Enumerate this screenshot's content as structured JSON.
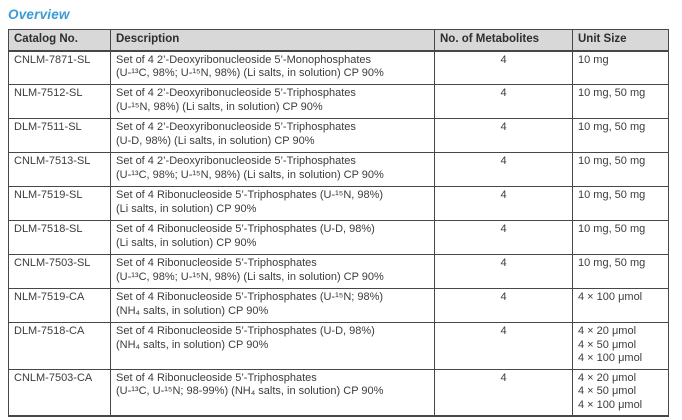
{
  "page": {
    "title": "Overview",
    "accent_color": "#3a9bd5"
  },
  "table": {
    "headers": [
      "Catalog No.",
      "Description",
      "No. of Metabolites",
      "Unit Size"
    ],
    "rows": [
      {
        "catalog": "CNLM-7871-SL",
        "description_lines": [
          "Set of 4 2’-Deoxyribonucleoside 5’-Monophosphates",
          "(U-¹³C, 98%; U-¹⁵N, 98%) (Li salts, in solution) CP 90%"
        ],
        "metabolites": "4",
        "unit_sizes": [
          "10 mg"
        ]
      },
      {
        "catalog": "NLM-7512-SL",
        "description_lines": [
          "Set of 4 2’-Deoxyribonucleoside 5’-Triphosphates",
          "(U-¹⁵N, 98%) (Li salts, in solution) CP 90%"
        ],
        "metabolites": "4",
        "unit_sizes": [
          "10 mg, 50 mg"
        ]
      },
      {
        "catalog": "DLM-7511-SL",
        "description_lines": [
          "Set of 4 2’-Deoxyribonucleoside 5’-Triphosphates",
          "(U-D, 98%) (Li salts, in solution) CP 90%"
        ],
        "metabolites": "4",
        "unit_sizes": [
          "10 mg, 50 mg"
        ]
      },
      {
        "catalog": "CNLM-7513-SL",
        "description_lines": [
          "Set of 4 2’-Deoxyribonucleoside 5’-Triphosphates",
          "(U-¹³C, 98%; U-¹⁵N, 98%) (Li salts, in solution) CP 90%"
        ],
        "metabolites": "4",
        "unit_sizes": [
          "10 mg, 50 mg"
        ]
      },
      {
        "catalog": "NLM-7519-SL",
        "description_lines": [
          "Set of 4 Ribonucleoside 5’-Triphosphates (U-¹⁵N, 98%)",
          "(Li salts, in solution) CP 90%"
        ],
        "metabolites": "4",
        "unit_sizes": [
          "10 mg, 50 mg"
        ]
      },
      {
        "catalog": "DLM-7518-SL",
        "description_lines": [
          "Set of 4 Ribonucleoside 5’-Triphosphates (U-D, 98%)",
          "(Li salts, in solution) CP 90%"
        ],
        "metabolites": "4",
        "unit_sizes": [
          "10 mg, 50 mg"
        ]
      },
      {
        "catalog": "CNLM-7503-SL",
        "description_lines": [
          "Set of 4 Ribonucleoside 5’-Triphosphates",
          "(U-¹³C, 98%; U-¹⁵N, 98%) (Li salts, in solution) CP 90%"
        ],
        "metabolites": "4",
        "unit_sizes": [
          "10 mg, 50 mg"
        ]
      },
      {
        "catalog": "NLM-7519-CA",
        "description_lines": [
          "Set of 4 Ribonucleoside 5’-Triphosphates (U-¹⁵N; 98%)",
          "(NH₄ salts, in solution) CP 90%"
        ],
        "metabolites": "4",
        "unit_sizes": [
          "4 × 100 μmol"
        ]
      },
      {
        "catalog": "DLM-7518-CA",
        "description_lines": [
          "Set of 4 Ribonucleoside 5’-Triphosphates (U-D, 98%)",
          "(NH₄ salts, in solution) CP 90%"
        ],
        "metabolites": "4",
        "unit_sizes": [
          "4 × 20 μmol",
          "4 × 50 μmol",
          "4 × 100 μmol"
        ]
      },
      {
        "catalog": "CNLM-7503-CA",
        "description_lines": [
          "Set of 4 Ribonucleoside 5’-Triphosphates",
          "(U-¹³C, U-¹⁵N; 98-99%) (NH₄ salts, in solution) CP 90%"
        ],
        "metabolites": "4",
        "unit_sizes": [
          "4 × 20 μmol",
          "4 × 50 μmol",
          "4 × 100 μmol"
        ]
      }
    ]
  }
}
